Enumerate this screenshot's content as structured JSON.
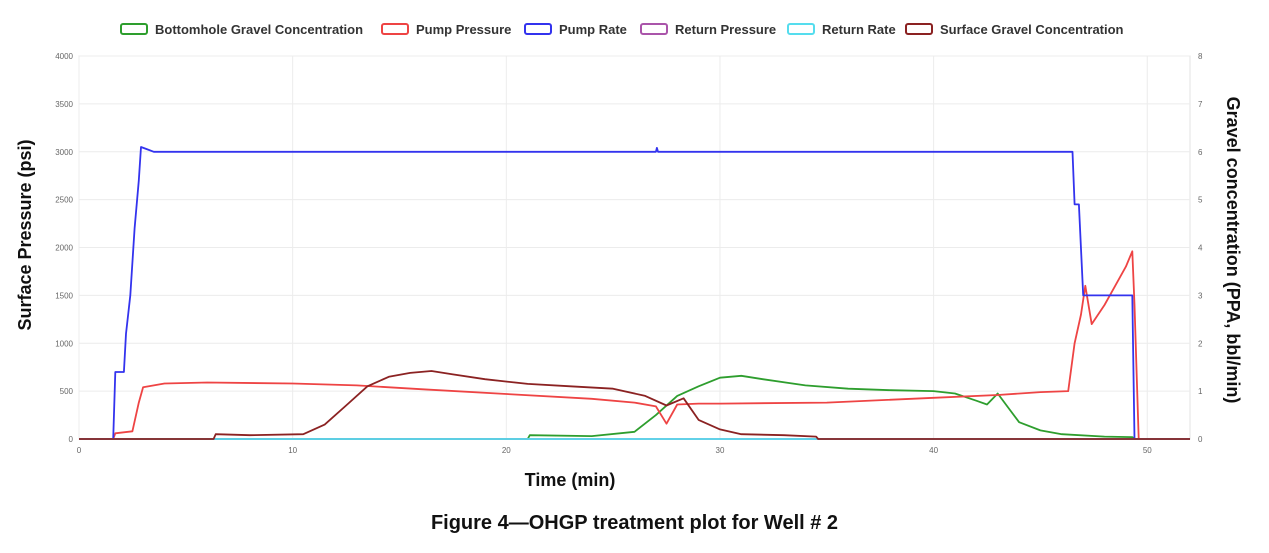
{
  "chart_data": {
    "type": "line",
    "caption": "Figure 4—OHGP treatment plot for Well # 2",
    "xlabel": "Time (min)",
    "ylabel_left": "Surface Pressure (psi)",
    "ylabel_right": "Gravel concentration (PPA, bbl/min)",
    "xlim": [
      0,
      52
    ],
    "ylim_left": [
      0,
      4000
    ],
    "ylim_right": [
      0,
      8
    ],
    "x_ticks": [
      "0",
      "10",
      "20",
      "30",
      "40",
      "50"
    ],
    "y_left_ticks": [
      "0",
      "500",
      "1000",
      "1500",
      "2000",
      "2500",
      "3000",
      "3500",
      "4000"
    ],
    "y_right_ticks": [
      "0",
      "1",
      "2",
      "3",
      "4",
      "5",
      "6",
      "7",
      "8"
    ],
    "grid": true,
    "legend_position": "top",
    "series": [
      {
        "name": "Bottomhole Gravel Concentration",
        "axis": "right",
        "color": "#2e9e2e",
        "points": [
          [
            0,
            0
          ],
          [
            21,
            0
          ],
          [
            21.1,
            0.08
          ],
          [
            24,
            0.06
          ],
          [
            26,
            0.15
          ],
          [
            27,
            0.5
          ],
          [
            28,
            0.9
          ],
          [
            29,
            1.1
          ],
          [
            30,
            1.28
          ],
          [
            31,
            1.32
          ],
          [
            32,
            1.25
          ],
          [
            34,
            1.12
          ],
          [
            36,
            1.05
          ],
          [
            38,
            1.02
          ],
          [
            40,
            1.0
          ],
          [
            41,
            0.95
          ],
          [
            42,
            0.8
          ],
          [
            42.5,
            0.72
          ],
          [
            43,
            0.95
          ],
          [
            43.5,
            0.65
          ],
          [
            44,
            0.35
          ],
          [
            45,
            0.18
          ],
          [
            46,
            0.1
          ],
          [
            48,
            0.05
          ],
          [
            49.3,
            0.04
          ],
          [
            49.4,
            0.0
          ],
          [
            52,
            0
          ]
        ]
      },
      {
        "name": "Pump Pressure",
        "axis": "left",
        "color": "#ee4444",
        "points": [
          [
            0,
            0
          ],
          [
            1.6,
            0
          ],
          [
            1.7,
            60
          ],
          [
            2.5,
            80
          ],
          [
            2.8,
            380
          ],
          [
            3.0,
            540
          ],
          [
            4,
            580
          ],
          [
            6,
            590
          ],
          [
            10,
            580
          ],
          [
            13,
            560
          ],
          [
            16,
            520
          ],
          [
            20,
            470
          ],
          [
            24,
            420
          ],
          [
            26,
            380
          ],
          [
            27,
            340
          ],
          [
            27.5,
            160
          ],
          [
            28,
            360
          ],
          [
            29,
            370
          ],
          [
            30,
            370
          ],
          [
            35,
            380
          ],
          [
            40,
            430
          ],
          [
            43,
            460
          ],
          [
            45,
            490
          ],
          [
            46.3,
            500
          ],
          [
            46.6,
            1000
          ],
          [
            46.9,
            1300
          ],
          [
            47.1,
            1600
          ],
          [
            47.4,
            1200
          ],
          [
            48,
            1400
          ],
          [
            48.5,
            1600
          ],
          [
            49.0,
            1800
          ],
          [
            49.3,
            1960
          ],
          [
            49.4,
            1400
          ],
          [
            49.6,
            0
          ],
          [
            52,
            0
          ]
        ]
      },
      {
        "name": "Pump Rate",
        "axis": "right",
        "color": "#3333ee",
        "points": [
          [
            0,
            0
          ],
          [
            1.6,
            0
          ],
          [
            1.7,
            1.4
          ],
          [
            2.1,
            1.4
          ],
          [
            2.2,
            2.2
          ],
          [
            2.4,
            3.0
          ],
          [
            2.6,
            4.4
          ],
          [
            2.8,
            5.4
          ],
          [
            2.9,
            6.1
          ],
          [
            3.2,
            6.05
          ],
          [
            3.5,
            6.0
          ],
          [
            27,
            6.0
          ],
          [
            27.05,
            6.08
          ],
          [
            27.1,
            6.0
          ],
          [
            46.5,
            6.0
          ],
          [
            46.6,
            4.9
          ],
          [
            46.8,
            4.9
          ],
          [
            47.0,
            3.0
          ],
          [
            49.3,
            3.0
          ],
          [
            49.4,
            0.0
          ],
          [
            52,
            0
          ]
        ]
      },
      {
        "name": "Return Pressure",
        "axis": "left",
        "color": "#aa55aa",
        "points": [
          [
            0,
            0
          ],
          [
            52,
            0
          ]
        ]
      },
      {
        "name": "Return Rate",
        "axis": "right",
        "color": "#55ddee",
        "points": [
          [
            0,
            0
          ],
          [
            52,
            0
          ]
        ]
      },
      {
        "name": "Surface Gravel Concentration",
        "axis": "right",
        "color": "#8b2222",
        "points": [
          [
            0,
            0
          ],
          [
            6.3,
            0
          ],
          [
            6.4,
            0.1
          ],
          [
            8,
            0.08
          ],
          [
            10.5,
            0.1
          ],
          [
            11.5,
            0.3
          ],
          [
            12.5,
            0.7
          ],
          [
            13.5,
            1.1
          ],
          [
            14.5,
            1.3
          ],
          [
            15.5,
            1.38
          ],
          [
            16.5,
            1.42
          ],
          [
            17.5,
            1.35
          ],
          [
            19,
            1.25
          ],
          [
            21,
            1.15
          ],
          [
            23,
            1.1
          ],
          [
            25,
            1.05
          ],
          [
            26.5,
            0.9
          ],
          [
            27.5,
            0.7
          ],
          [
            28.3,
            0.85
          ],
          [
            29,
            0.4
          ],
          [
            30,
            0.2
          ],
          [
            31,
            0.1
          ],
          [
            33,
            0.08
          ],
          [
            34.5,
            0.05
          ],
          [
            34.6,
            0.0
          ],
          [
            52,
            0
          ]
        ]
      }
    ]
  }
}
